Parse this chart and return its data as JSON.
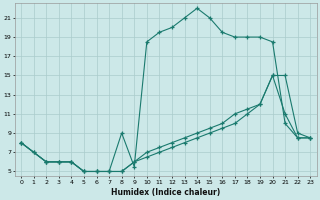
{
  "xlabel": "Humidex (Indice chaleur)",
  "bg_color": "#cce8e8",
  "grid_color": "#aacccc",
  "line_color": "#1a7a6e",
  "line1_x": [
    0,
    1,
    2,
    3,
    4,
    5,
    6,
    7,
    8,
    9,
    10,
    11,
    12,
    13,
    14,
    15,
    16,
    17,
    18,
    19,
    20,
    21,
    22,
    23
  ],
  "line1_y": [
    8,
    7,
    6,
    6,
    6,
    5,
    5,
    5,
    9,
    5.5,
    18.5,
    19.5,
    20,
    21,
    22,
    21,
    19.5,
    19,
    19,
    19,
    18.5,
    10,
    8.5,
    8.5
  ],
  "line2_x": [
    0,
    2,
    3,
    4,
    5,
    6,
    7,
    8,
    9,
    10,
    11,
    12,
    13,
    14,
    15,
    16,
    17,
    18,
    19,
    20,
    21,
    22,
    23
  ],
  "line2_y": [
    8,
    6,
    6,
    6,
    5,
    5,
    5,
    5,
    6,
    7,
    7.5,
    8,
    8.5,
    9,
    9.5,
    10,
    11,
    11.5,
    12,
    15,
    11,
    8.5,
    8.5
  ],
  "line3_x": [
    0,
    1,
    2,
    3,
    4,
    5,
    6,
    7,
    8,
    9,
    10,
    11,
    12,
    13,
    14,
    15,
    16,
    17,
    18,
    19,
    20,
    21,
    22,
    23
  ],
  "line3_y": [
    8,
    7,
    6,
    6,
    6,
    5,
    5,
    5,
    5,
    6,
    6.5,
    7,
    7.5,
    8,
    8.5,
    9,
    9.5,
    10,
    11,
    12,
    15,
    15,
    9,
    8.5
  ],
  "xlim": [
    -0.5,
    23.5
  ],
  "ylim": [
    4.5,
    22.5
  ],
  "yticks": [
    5,
    7,
    9,
    11,
    13,
    15,
    17,
    19,
    21
  ],
  "xticks": [
    0,
    1,
    2,
    3,
    4,
    5,
    6,
    7,
    8,
    9,
    10,
    11,
    12,
    13,
    14,
    15,
    16,
    17,
    18,
    19,
    20,
    21,
    22,
    23
  ]
}
